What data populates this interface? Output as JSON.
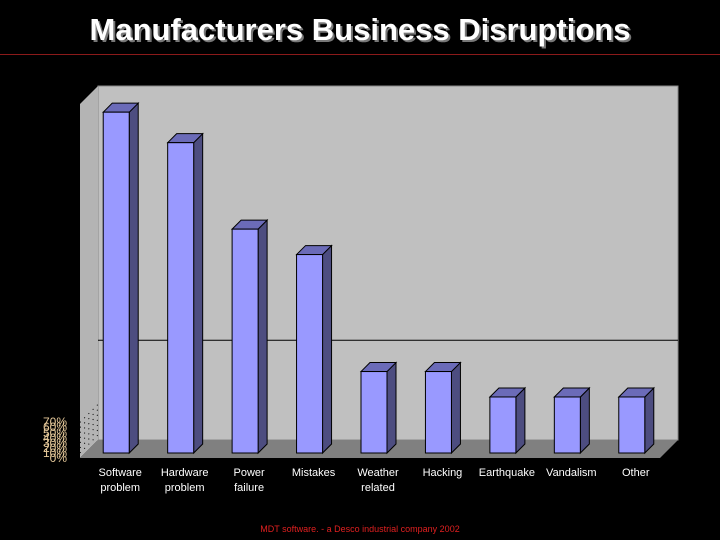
{
  "slide": {
    "title": "Manufacturers Business Disruptions",
    "footer": "MDT software. - a Desco industrial company 2002"
  },
  "colors": {
    "background": "#000000",
    "title_rule": "#8b1a1a",
    "wall": "#c0c0c0",
    "floor": "#808080",
    "bar_front": "#9999ff",
    "bar_side": "#4d4d80",
    "bar_top": "#6b6bb8",
    "ytick_label": "#e6c99a",
    "xtick_label": "#ffffff",
    "footer": "#e02020"
  },
  "chart_data": {
    "type": "bar",
    "title": "Manufacturers Business Disruptions",
    "xlabel": "",
    "ylabel": "",
    "categories": [
      "Software problem",
      "Hardware problem",
      "Power failure",
      "Mistakes",
      "Weather related",
      "Hacking",
      "Earthquake",
      "Vandalism",
      "Other"
    ],
    "category_lines": [
      [
        "Software",
        "problem"
      ],
      [
        "Hardware",
        "problem"
      ],
      [
        "Power",
        "failure"
      ],
      [
        "Mistakes"
      ],
      [
        "Weather",
        "related"
      ],
      [
        "Hacking"
      ],
      [
        "Earthquake"
      ],
      [
        "Vandalism"
      ],
      [
        "Other"
      ]
    ],
    "values": [
      68,
      62,
      45,
      40,
      17,
      17,
      12,
      12,
      12
    ],
    "unit": "%",
    "ylim": [
      0,
      70
    ],
    "yticks": [
      "0%",
      "10%",
      "20%",
      "30%",
      "40%",
      "50%",
      "60%",
      "70%"
    ],
    "grid": "single major gridline on back wall near 20%",
    "style": "3D column",
    "legend": "none"
  }
}
